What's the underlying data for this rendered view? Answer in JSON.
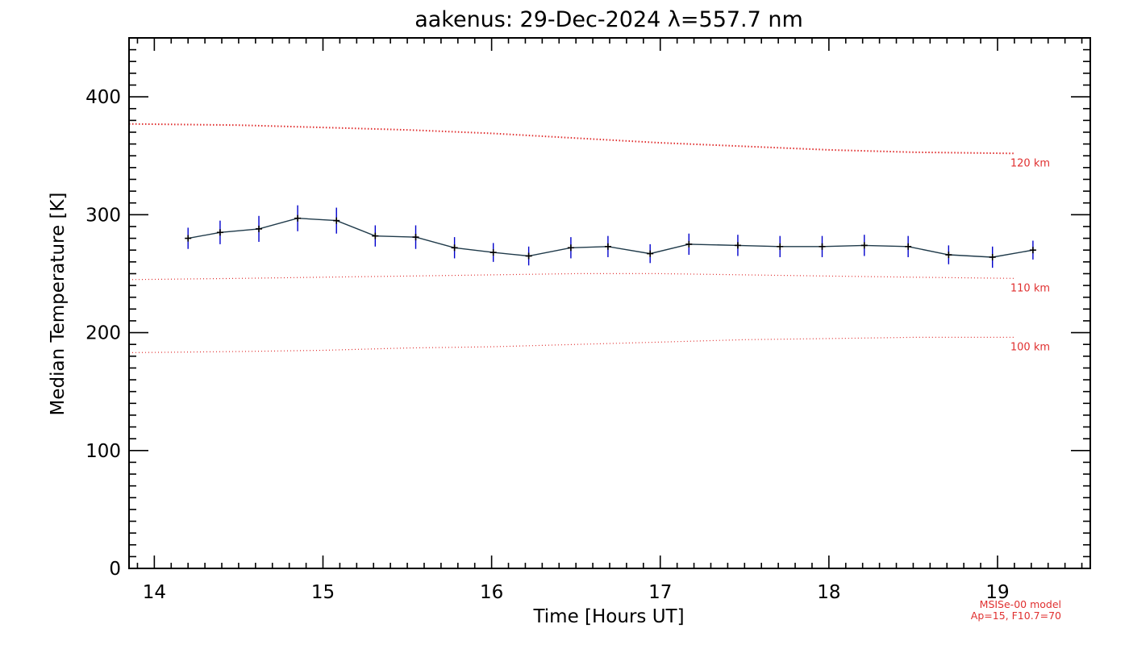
{
  "chart_data": {
    "type": "line",
    "title": "aakenus: 29-Dec-2024 λ=557.7 nm",
    "xlabel": "Time [Hours UT]",
    "ylabel": "Median Temperature [K]",
    "xlim": [
      13.85,
      19.55
    ],
    "ylim": [
      0,
      450
    ],
    "xticks": [
      14,
      15,
      16,
      17,
      18,
      19
    ],
    "yticks": [
      0,
      100,
      200,
      300,
      400
    ],
    "grid": false,
    "series": [
      {
        "color": "#000000",
        "error_color": "#0000cc",
        "x": [
          14.2,
          14.39,
          14.62,
          14.85,
          15.08,
          15.31,
          15.55,
          15.78,
          16.01,
          16.22,
          16.47,
          16.69,
          16.94,
          17.17,
          17.46,
          17.71,
          17.96,
          18.21,
          18.47,
          18.71,
          18.97,
          19.21
        ],
        "y": [
          280,
          285,
          288,
          297,
          295,
          282,
          281,
          272,
          268,
          265,
          272,
          273,
          267,
          275,
          274,
          273,
          273,
          274,
          273,
          266,
          264,
          270
        ],
        "err": [
          9,
          10,
          11,
          11,
          11,
          9,
          10,
          9,
          8,
          8,
          9,
          9,
          8,
          9,
          9,
          9,
          9,
          9,
          9,
          8,
          9,
          8
        ]
      }
    ],
    "model_lines": [
      {
        "name": "120 km",
        "color": "#e03030",
        "x": [
          13.85,
          14.5,
          15.0,
          15.5,
          16.0,
          16.5,
          17.0,
          17.5,
          18.0,
          18.5,
          19.1
        ],
        "y": [
          377,
          376,
          374,
          372,
          369,
          365,
          361,
          358,
          355,
          353,
          352
        ]
      },
      {
        "name": "110 km",
        "color": "#e03030",
        "x": [
          13.85,
          14.5,
          15.0,
          15.5,
          16.0,
          16.5,
          17.0,
          17.5,
          18.0,
          18.5,
          19.1
        ],
        "y": [
          245,
          246,
          247,
          248,
          249,
          250,
          250,
          249,
          248,
          247,
          246
        ]
      },
      {
        "name": "100 km",
        "color": "#e03030",
        "x": [
          13.85,
          14.5,
          15.0,
          15.5,
          16.0,
          16.5,
          17.0,
          17.5,
          18.0,
          18.5,
          19.1
        ],
        "y": [
          183,
          184,
          185,
          187,
          188,
          190,
          192,
          194,
          195,
          196,
          196
        ]
      }
    ],
    "model_note": [
      "MSISe-00 model",
      "Ap=15, F10.7=70"
    ]
  }
}
